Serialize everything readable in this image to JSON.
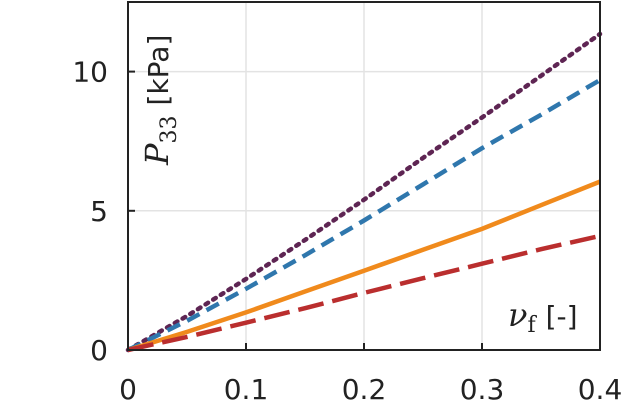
{
  "chart_data": {
    "type": "line",
    "xlim": [
      0,
      0.4
    ],
    "ylim": [
      0,
      12.5
    ],
    "xticks": [
      "0",
      "0.1",
      "0.2",
      "0.3",
      "0.4"
    ],
    "yticks": [
      "0",
      "5",
      "10"
    ],
    "xtick_values": [
      0,
      0.1,
      0.2,
      0.3,
      0.4
    ],
    "ytick_values": [
      0,
      5,
      10
    ],
    "grid": true,
    "ylabel": {
      "symbol": "P",
      "subscript": "33",
      "unit": "[kPa]"
    },
    "xlabel": {
      "symbol": "ν",
      "subscript": "f",
      "unit": "[-]"
    },
    "x": [
      0,
      0.05,
      0.1,
      0.15,
      0.2,
      0.25,
      0.3,
      0.35,
      0.4
    ],
    "series": [
      {
        "color": "#5e2553",
        "dash": "dotted",
        "values": [
          0,
          1.22,
          2.55,
          3.95,
          5.4,
          6.9,
          8.35,
          9.85,
          11.35
        ]
      },
      {
        "color": "#2f77ad",
        "dash": "dashed",
        "values": [
          0,
          1.05,
          2.2,
          3.4,
          4.65,
          5.95,
          7.25,
          8.45,
          9.7
        ]
      },
      {
        "color": "#f08a1c",
        "dash": "solid",
        "values": [
          0,
          0.65,
          1.35,
          2.1,
          2.85,
          3.6,
          4.35,
          5.2,
          6.05
        ]
      },
      {
        "color": "#ba2e2e",
        "dash": "longdashed",
        "values": [
          0,
          0.47,
          0.98,
          1.5,
          2.05,
          2.58,
          3.1,
          3.62,
          4.1
        ]
      }
    ]
  }
}
